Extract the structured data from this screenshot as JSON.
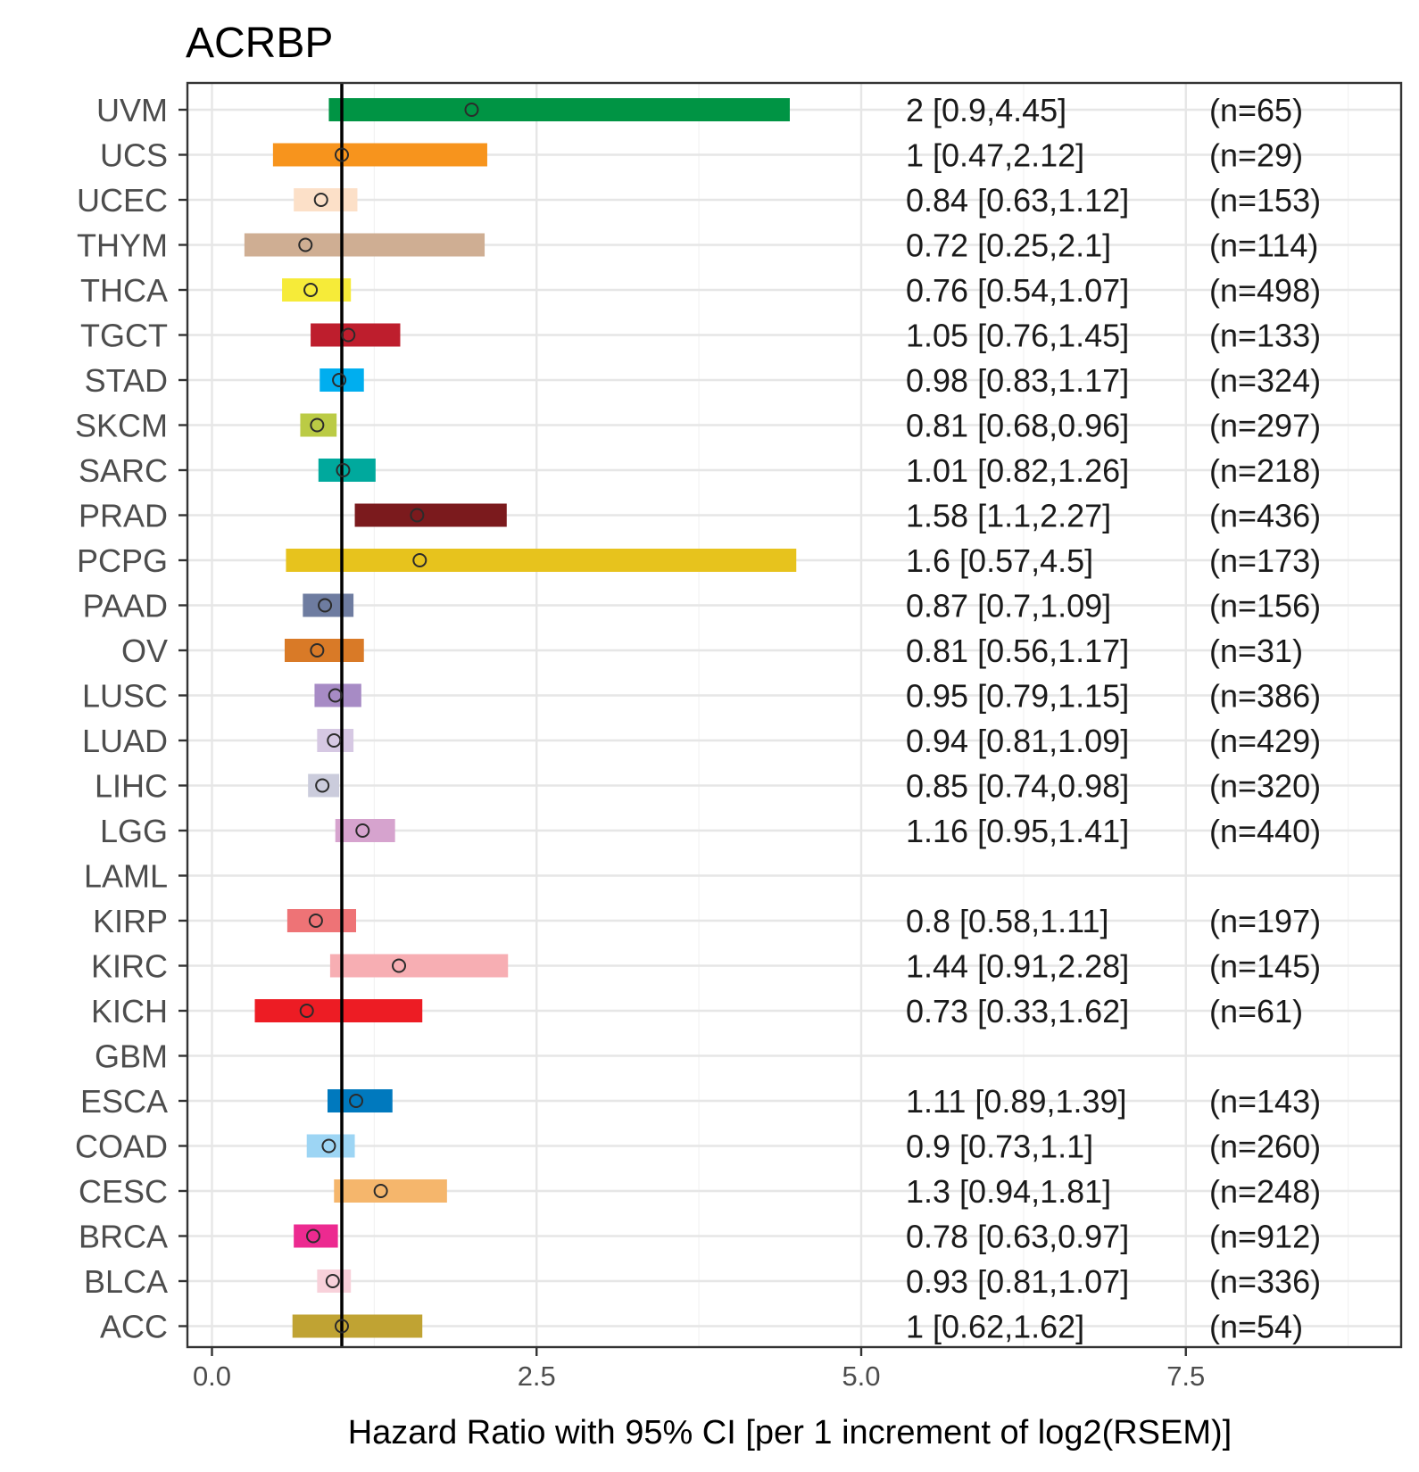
{
  "chart_data": {
    "type": "forest",
    "title": "ACRBP",
    "xlabel": "Hazard Ratio with 95% CI [per 1 increment of log2(RSEM)]",
    "ylabel": "",
    "xlim": [
      -0.2,
      9.2
    ],
    "xticks": [
      0.0,
      2.5,
      5.0,
      7.5
    ],
    "xtick_labels": [
      "0.0",
      "2.5",
      "5.0",
      "7.5"
    ],
    "reference_line": 1,
    "grid": true,
    "rows": [
      {
        "label": "UVM",
        "hr": 2,
        "lower": 0.9,
        "upper": 4.45,
        "ci_text": "2 [0.9,4.45]",
        "n_text": "(n=65)",
        "color": "#009444"
      },
      {
        "label": "UCS",
        "hr": 1,
        "lower": 0.47,
        "upper": 2.12,
        "ci_text": "1 [0.47,2.12]",
        "n_text": "(n=29)",
        "color": "#F7941D"
      },
      {
        "label": "UCEC",
        "hr": 0.84,
        "lower": 0.63,
        "upper": 1.12,
        "ci_text": "0.84 [0.63,1.12]",
        "n_text": "(n=153)",
        "color": "#FCE0C8"
      },
      {
        "label": "THYM",
        "hr": 0.72,
        "lower": 0.25,
        "upper": 2.1,
        "ci_text": "0.72 [0.25,2.1]",
        "n_text": "(n=114)",
        "color": "#CFAE93"
      },
      {
        "label": "THCA",
        "hr": 0.76,
        "lower": 0.54,
        "upper": 1.07,
        "ci_text": "0.76 [0.54,1.07]",
        "n_text": "(n=498)",
        "color": "#F6EB39"
      },
      {
        "label": "TGCT",
        "hr": 1.05,
        "lower": 0.76,
        "upper": 1.45,
        "ci_text": "1.05 [0.76,1.45]",
        "n_text": "(n=133)",
        "color": "#BE1E2D"
      },
      {
        "label": "STAD",
        "hr": 0.98,
        "lower": 0.83,
        "upper": 1.17,
        "ci_text": "0.98 [0.83,1.17]",
        "n_text": "(n=324)",
        "color": "#00AEEF"
      },
      {
        "label": "SKCM",
        "hr": 0.81,
        "lower": 0.68,
        "upper": 0.96,
        "ci_text": "0.81 [0.68,0.96]",
        "n_text": "(n=297)",
        "color": "#BBCB45"
      },
      {
        "label": "SARC",
        "hr": 1.01,
        "lower": 0.82,
        "upper": 1.26,
        "ci_text": "1.01 [0.82,1.26]",
        "n_text": "(n=218)",
        "color": "#00A99D"
      },
      {
        "label": "PRAD",
        "hr": 1.58,
        "lower": 1.1,
        "upper": 2.27,
        "ci_text": "1.58 [1.1,2.27]",
        "n_text": "(n=436)",
        "color": "#7B1A1D"
      },
      {
        "label": "PCPG",
        "hr": 1.6,
        "lower": 0.57,
        "upper": 4.5,
        "ci_text": "1.6 [0.57,4.5]",
        "n_text": "(n=173)",
        "color": "#E7C31D"
      },
      {
        "label": "PAAD",
        "hr": 0.87,
        "lower": 0.7,
        "upper": 1.09,
        "ci_text": "0.87 [0.7,1.09]",
        "n_text": "(n=156)",
        "color": "#6E7CA0"
      },
      {
        "label": "OV",
        "hr": 0.81,
        "lower": 0.56,
        "upper": 1.17,
        "ci_text": "0.81 [0.56,1.17]",
        "n_text": "(n=31)",
        "color": "#D97A27"
      },
      {
        "label": "LUSC",
        "hr": 0.95,
        "lower": 0.79,
        "upper": 1.15,
        "ci_text": "0.95 [0.79,1.15]",
        "n_text": "(n=386)",
        "color": "#A78BC5"
      },
      {
        "label": "LUAD",
        "hr": 0.94,
        "lower": 0.81,
        "upper": 1.09,
        "ci_text": "0.94 [0.81,1.09]",
        "n_text": "(n=429)",
        "color": "#D6C8E3"
      },
      {
        "label": "LIHC",
        "hr": 0.85,
        "lower": 0.74,
        "upper": 0.98,
        "ci_text": "0.85 [0.74,0.98]",
        "n_text": "(n=320)",
        "color": "#CBCCDC"
      },
      {
        "label": "LGG",
        "hr": 1.16,
        "lower": 0.95,
        "upper": 1.41,
        "ci_text": "1.16 [0.95,1.41]",
        "n_text": "(n=440)",
        "color": "#D6A3CE"
      },
      {
        "label": "LAML",
        "hr": null,
        "lower": null,
        "upper": null,
        "ci_text": "",
        "n_text": "",
        "color": "#ffffff"
      },
      {
        "label": "KIRP",
        "hr": 0.8,
        "lower": 0.58,
        "upper": 1.11,
        "ci_text": "0.8 [0.58,1.11]",
        "n_text": "(n=197)",
        "color": "#EE7376"
      },
      {
        "label": "KIRC",
        "hr": 1.44,
        "lower": 0.91,
        "upper": 2.28,
        "ci_text": "1.44 [0.91,2.28]",
        "n_text": "(n=145)",
        "color": "#F7AEB3"
      },
      {
        "label": "KICH",
        "hr": 0.73,
        "lower": 0.33,
        "upper": 1.62,
        "ci_text": "0.73 [0.33,1.62]",
        "n_text": "(n=61)",
        "color": "#ED1C24"
      },
      {
        "label": "GBM",
        "hr": null,
        "lower": null,
        "upper": null,
        "ci_text": "",
        "n_text": "",
        "color": "#ffffff"
      },
      {
        "label": "ESCA",
        "hr": 1.11,
        "lower": 0.89,
        "upper": 1.39,
        "ci_text": "1.11 [0.89,1.39]",
        "n_text": "(n=143)",
        "color": "#0079BE"
      },
      {
        "label": "COAD",
        "hr": 0.9,
        "lower": 0.73,
        "upper": 1.1,
        "ci_text": "0.9 [0.73,1.1]",
        "n_text": "(n=260)",
        "color": "#9DD5F4"
      },
      {
        "label": "CESC",
        "hr": 1.3,
        "lower": 0.94,
        "upper": 1.81,
        "ci_text": "1.3 [0.94,1.81]",
        "n_text": "(n=248)",
        "color": "#F5B66C"
      },
      {
        "label": "BRCA",
        "hr": 0.78,
        "lower": 0.63,
        "upper": 0.97,
        "ci_text": "0.78 [0.63,0.97]",
        "n_text": "(n=912)",
        "color": "#EC2A90"
      },
      {
        "label": "BLCA",
        "hr": 0.93,
        "lower": 0.81,
        "upper": 1.07,
        "ci_text": "0.93 [0.81,1.07]",
        "n_text": "(n=336)",
        "color": "#F8D1DA"
      },
      {
        "label": "ACC",
        "hr": 1,
        "lower": 0.62,
        "upper": 1.62,
        "ci_text": "1 [0.62,1.62]",
        "n_text": "(n=54)",
        "color": "#C0A333"
      }
    ]
  }
}
